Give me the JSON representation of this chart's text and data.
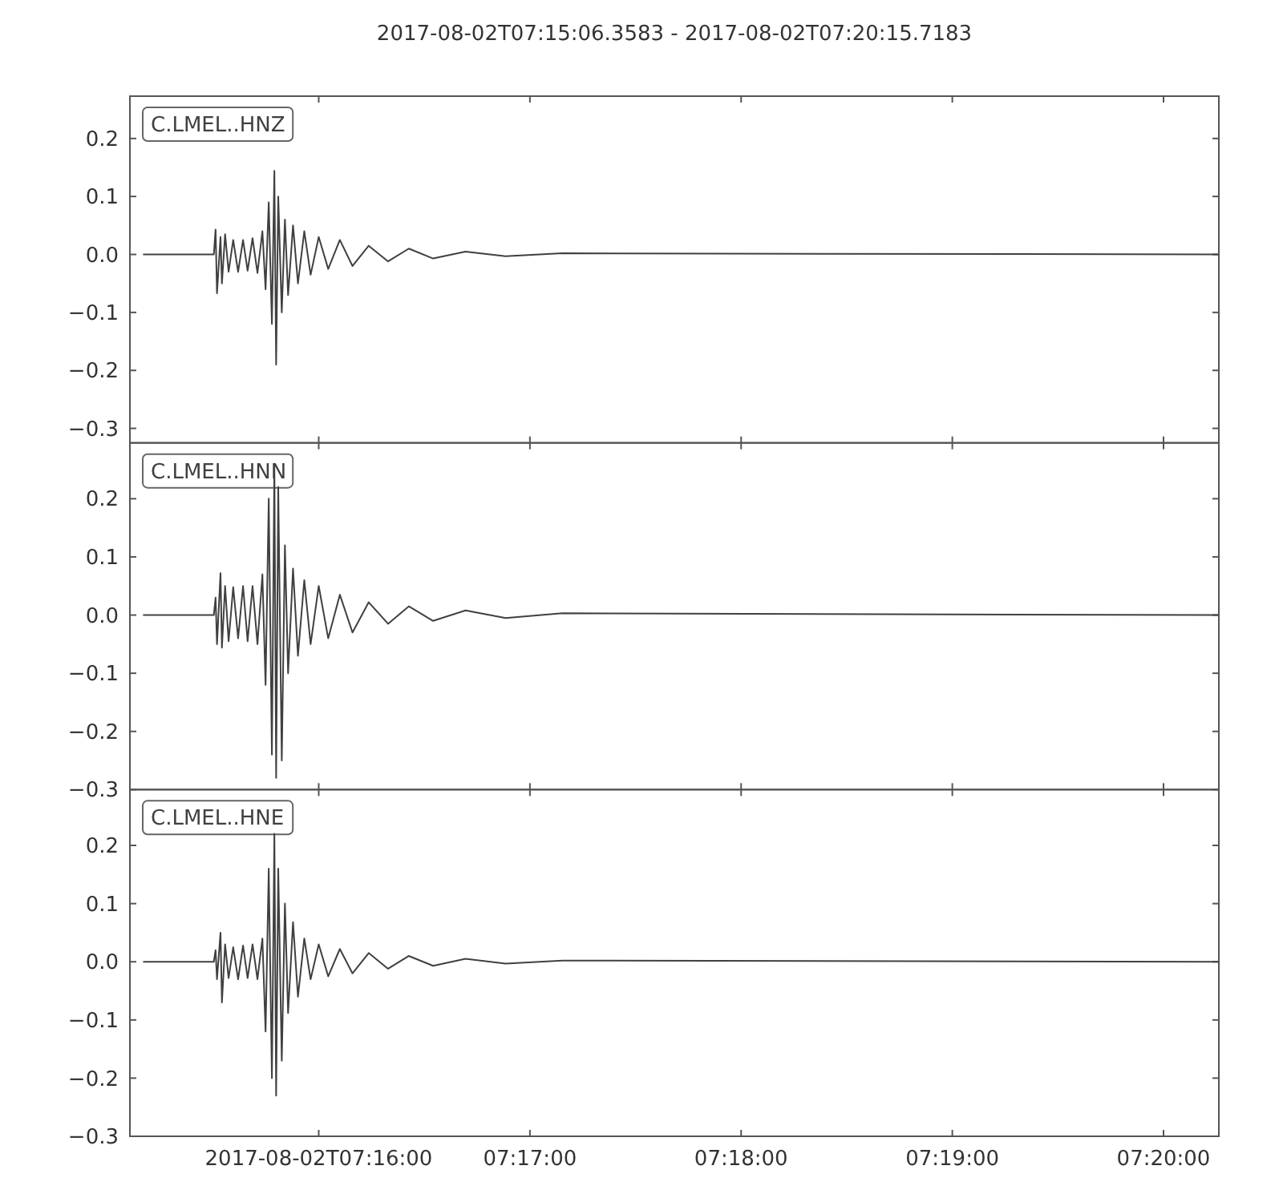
{
  "chart_data": [
    {
      "type": "line",
      "title": "2017-08-02T07:15:06.3583  -  2017-08-02T07:20:15.7183",
      "legend": "top left",
      "marker": "none",
      "line_style": "solid",
      "grid": false,
      "tick_labels": "y",
      "x": [
        "2017-08-02T07:15:10.1",
        "2017-08-02T07:15:30.2",
        "2017-08-02T07:15:30.7",
        "2017-08-02T07:15:31.1",
        "2017-08-02T07:15:32.1",
        "2017-08-02T07:15:32.5",
        "2017-08-02T07:15:33.4",
        "2017-08-02T07:15:34.4",
        "2017-08-02T07:15:35.7",
        "2017-08-02T07:15:37.1",
        "2017-08-02T07:15:38.5",
        "2017-08-02T07:15:39.8",
        "2017-08-02T07:15:41.2",
        "2017-08-02T07:15:42.6",
        "2017-08-02T07:15:44.0",
        "2017-08-02T07:15:44.9",
        "2017-08-02T07:15:45.8",
        "2017-08-02T07:15:46.7",
        "2017-08-02T07:15:47.4",
        "2017-08-02T07:15:47.9",
        "2017-08-02T07:15:48.5",
        "2017-08-02T07:15:49.5",
        "2017-08-02T07:15:50.4",
        "2017-08-02T07:15:51.3",
        "2017-08-02T07:15:52.7",
        "2017-08-02T07:15:54.1",
        "2017-08-02T07:15:55.9",
        "2017-08-02T07:15:57.7",
        "2017-08-02T07:16:00.0",
        "2017-08-02T07:16:02.7",
        "2017-08-02T07:16:06.0",
        "2017-08-02T07:16:09.6",
        "2017-08-02T07:16:14.2",
        "2017-08-02T07:16:19.7",
        "2017-08-02T07:16:25.6",
        "2017-08-02T07:16:32.5",
        "2017-08-02T07:16:41.7",
        "2017-08-02T07:16:53.1",
        "2017-08-02T07:17:09.2",
        "2017-08-02T07:20:15.6"
      ],
      "series": [
        {
          "name": "C.LMEL..HNZ",
          "color": "#404040",
          "values": [
            0,
            0,
            0.043,
            -0.067,
            0.03,
            -0.05,
            0.035,
            -0.03,
            0.025,
            -0.03,
            0.025,
            -0.028,
            0.028,
            -0.032,
            0.04,
            -0.06,
            0.09,
            -0.12,
            0.144,
            -0.19,
            0.1,
            -0.1,
            0.06,
            -0.07,
            0.05,
            -0.05,
            0.04,
            -0.035,
            0.03,
            -0.025,
            0.025,
            -0.02,
            0.015,
            -0.012,
            0.01,
            -0.007,
            0.005,
            -0.003,
            0.002,
            0
          ]
        }
      ],
      "xlim": [
        "2017-08-02T07:15:06.3583",
        "2017-08-02T07:20:15.7183"
      ],
      "xticks": [
        {
          "value": "2017-08-02T07:16:00",
          "label": null
        },
        {
          "value": "2017-08-02T07:17:00",
          "label": null
        },
        {
          "value": "2017-08-02T07:18:00",
          "label": null
        },
        {
          "value": "2017-08-02T07:19:00",
          "label": null
        },
        {
          "value": "2017-08-02T07:20:00",
          "label": null
        }
      ],
      "ylim": [
        -0.325,
        0.273
      ],
      "yticks": [
        {
          "value": -0.3,
          "label": "−0.3"
        },
        {
          "value": -0.2,
          "label": "−0.2"
        },
        {
          "value": -0.1,
          "label": "−0.1"
        },
        {
          "value": 0,
          "label": "0.0"
        },
        {
          "value": 0.1,
          "label": "0.1"
        },
        {
          "value": 0.2,
          "label": "0.2"
        }
      ]
    },
    {
      "type": "line",
      "legend": "top left",
      "marker": "none",
      "line_style": "solid",
      "grid": false,
      "tick_labels": "y",
      "x": [
        "2017-08-02T07:15:10.1",
        "2017-08-02T07:15:30.2",
        "2017-08-02T07:15:30.7",
        "2017-08-02T07:15:31.1",
        "2017-08-02T07:15:32.1",
        "2017-08-02T07:15:32.5",
        "2017-08-02T07:15:33.4",
        "2017-08-02T07:15:34.4",
        "2017-08-02T07:15:35.7",
        "2017-08-02T07:15:37.1",
        "2017-08-02T07:15:38.5",
        "2017-08-02T07:15:39.8",
        "2017-08-02T07:15:41.2",
        "2017-08-02T07:15:42.6",
        "2017-08-02T07:15:44.0",
        "2017-08-02T07:15:44.9",
        "2017-08-02T07:15:45.8",
        "2017-08-02T07:15:46.7",
        "2017-08-02T07:15:47.4",
        "2017-08-02T07:15:47.9",
        "2017-08-02T07:15:48.5",
        "2017-08-02T07:15:49.5",
        "2017-08-02T07:15:50.4",
        "2017-08-02T07:15:51.3",
        "2017-08-02T07:15:52.7",
        "2017-08-02T07:15:54.1",
        "2017-08-02T07:15:55.9",
        "2017-08-02T07:15:57.7",
        "2017-08-02T07:16:00.0",
        "2017-08-02T07:16:02.7",
        "2017-08-02T07:16:06.0",
        "2017-08-02T07:16:09.6",
        "2017-08-02T07:16:14.2",
        "2017-08-02T07:16:19.7",
        "2017-08-02T07:16:25.6",
        "2017-08-02T07:16:32.5",
        "2017-08-02T07:16:41.7",
        "2017-08-02T07:16:53.1",
        "2017-08-02T07:17:09.2",
        "2017-08-02T07:20:15.6"
      ],
      "series": [
        {
          "name": "C.LMEL..HNN",
          "color": "#404040",
          "values": [
            0,
            0,
            0.03,
            -0.05,
            0.072,
            -0.056,
            0.05,
            -0.045,
            0.048,
            -0.04,
            0.05,
            -0.045,
            0.05,
            -0.05,
            0.07,
            -0.12,
            0.2,
            -0.24,
            0.26,
            -0.28,
            0.22,
            -0.25,
            0.12,
            -0.1,
            0.08,
            -0.07,
            0.06,
            -0.05,
            0.05,
            -0.04,
            0.035,
            -0.03,
            0.022,
            -0.015,
            0.015,
            -0.01,
            0.008,
            -0.005,
            0.003,
            0
          ]
        }
      ],
      "xlim": [
        "2017-08-02T07:15:06.3583",
        "2017-08-02T07:20:15.7183"
      ],
      "xticks": [
        {
          "value": "2017-08-02T07:16:00",
          "label": null
        },
        {
          "value": "2017-08-02T07:17:00",
          "label": null
        },
        {
          "value": "2017-08-02T07:18:00",
          "label": null
        },
        {
          "value": "2017-08-02T07:19:00",
          "label": null
        },
        {
          "value": "2017-08-02T07:20:00",
          "label": null
        }
      ],
      "ylim": [
        -0.3,
        0.296
      ],
      "yticks": [
        {
          "value": -0.3,
          "label": "−0.3"
        },
        {
          "value": -0.2,
          "label": "−0.2"
        },
        {
          "value": -0.1,
          "label": "−0.1"
        },
        {
          "value": 0,
          "label": "0.0"
        },
        {
          "value": 0.1,
          "label": "0.1"
        },
        {
          "value": 0.2,
          "label": "0.2"
        }
      ]
    },
    {
      "type": "line",
      "legend": "top left",
      "marker": "none",
      "line_style": "solid",
      "grid": false,
      "x": [
        "2017-08-02T07:15:10.1",
        "2017-08-02T07:15:30.2",
        "2017-08-02T07:15:30.7",
        "2017-08-02T07:15:31.1",
        "2017-08-02T07:15:32.1",
        "2017-08-02T07:15:32.5",
        "2017-08-02T07:15:33.4",
        "2017-08-02T07:15:34.4",
        "2017-08-02T07:15:35.7",
        "2017-08-02T07:15:37.1",
        "2017-08-02T07:15:38.5",
        "2017-08-02T07:15:39.8",
        "2017-08-02T07:15:41.2",
        "2017-08-02T07:15:42.6",
        "2017-08-02T07:15:44.0",
        "2017-08-02T07:15:44.9",
        "2017-08-02T07:15:45.8",
        "2017-08-02T07:15:46.7",
        "2017-08-02T07:15:47.4",
        "2017-08-02T07:15:47.9",
        "2017-08-02T07:15:48.5",
        "2017-08-02T07:15:49.5",
        "2017-08-02T07:15:50.4",
        "2017-08-02T07:15:51.3",
        "2017-08-02T07:15:52.7",
        "2017-08-02T07:15:54.1",
        "2017-08-02T07:15:55.9",
        "2017-08-02T07:15:57.7",
        "2017-08-02T07:16:00.0",
        "2017-08-02T07:16:02.7",
        "2017-08-02T07:16:06.0",
        "2017-08-02T07:16:09.6",
        "2017-08-02T07:16:14.2",
        "2017-08-02T07:16:19.7",
        "2017-08-02T07:16:25.6",
        "2017-08-02T07:16:32.5",
        "2017-08-02T07:16:41.7",
        "2017-08-02T07:16:53.1",
        "2017-08-02T07:17:09.2",
        "2017-08-02T07:20:15.6"
      ],
      "series": [
        {
          "name": "C.LMEL..HNE",
          "color": "#404040",
          "values": [
            0,
            0,
            0.02,
            -0.03,
            0.05,
            -0.07,
            0.03,
            -0.028,
            0.025,
            -0.03,
            0.028,
            -0.028,
            0.03,
            -0.03,
            0.04,
            -0.12,
            0.16,
            -0.2,
            0.22,
            -0.23,
            0.16,
            -0.17,
            0.1,
            -0.088,
            0.068,
            -0.06,
            0.04,
            -0.03,
            0.03,
            -0.025,
            0.022,
            -0.02,
            0.015,
            -0.012,
            0.01,
            -0.007,
            0.005,
            -0.003,
            0.002,
            0
          ]
        }
      ],
      "xlim": [
        "2017-08-02T07:15:06.3583",
        "2017-08-02T07:20:15.7183"
      ],
      "xticks": [
        {
          "value": "2017-08-02T07:16:00",
          "label": "2017-08-02T07:16:00"
        },
        {
          "value": "2017-08-02T07:17:00",
          "label": "07:17:00"
        },
        {
          "value": "2017-08-02T07:18:00",
          "label": "07:18:00"
        },
        {
          "value": "2017-08-02T07:19:00",
          "label": "07:19:00"
        },
        {
          "value": "2017-08-02T07:20:00",
          "label": "07:20:00"
        }
      ],
      "ylim": [
        -0.3,
        0.296
      ],
      "yticks": [
        {
          "value": -0.3,
          "label": "−0.3"
        },
        {
          "value": -0.2,
          "label": "−0.2"
        },
        {
          "value": -0.1,
          "label": "−0.1"
        },
        {
          "value": 0,
          "label": "0.0"
        },
        {
          "value": 0.1,
          "label": "0.1"
        },
        {
          "value": 0.2,
          "label": "0.2"
        }
      ]
    }
  ]
}
